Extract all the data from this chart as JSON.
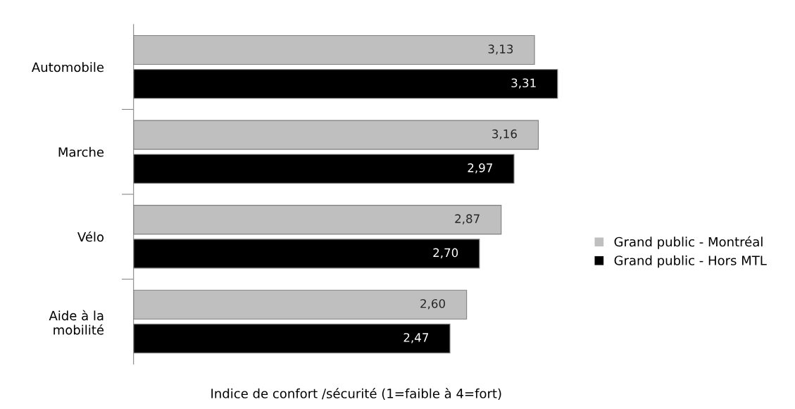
{
  "chart_data": {
    "type": "bar",
    "orientation": "horizontal",
    "categories": [
      "Automobile",
      "Marche",
      "Vélo",
      "Aide à la\nmobilité"
    ],
    "series": [
      {
        "name": "Grand public - Montréal",
        "color": "#bfbfbf",
        "values": [
          3.13,
          3.16,
          2.87,
          2.6
        ],
        "value_labels": [
          "3,13",
          "3,16",
          "2,87",
          "2,60"
        ]
      },
      {
        "name": "Grand public - Hors MTL",
        "color": "#000000",
        "values": [
          3.31,
          2.97,
          2.7,
          2.47
        ],
        "value_labels": [
          "3,31",
          "2,97",
          "2,70",
          "2,47"
        ]
      }
    ],
    "tick_labels": "y",
    "xlabel": "Indice de confort /sécurité (1=faible à 4=fort)",
    "legend": "right",
    "grid": false
  }
}
